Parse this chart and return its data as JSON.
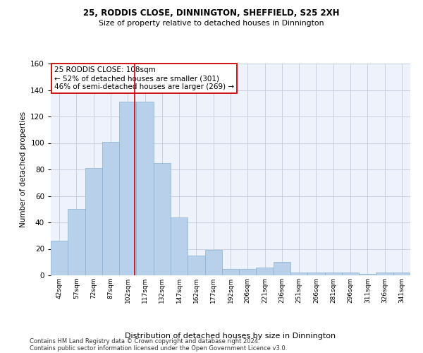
{
  "title1": "25, RODDIS CLOSE, DINNINGTON, SHEFFIELD, S25 2XH",
  "title2": "Size of property relative to detached houses in Dinnington",
  "xlabel": "Distribution of detached houses by size in Dinnington",
  "ylabel": "Number of detached properties",
  "categories": [
    "42sqm",
    "57sqm",
    "72sqm",
    "87sqm",
    "102sqm",
    "117sqm",
    "132sqm",
    "147sqm",
    "162sqm",
    "177sqm",
    "192sqm",
    "206sqm",
    "221sqm",
    "236sqm",
    "251sqm",
    "266sqm",
    "281sqm",
    "296sqm",
    "311sqm",
    "326sqm",
    "341sqm"
  ],
  "values": [
    26,
    50,
    81,
    101,
    131,
    131,
    85,
    44,
    15,
    19,
    5,
    5,
    6,
    10,
    2,
    2,
    2,
    2,
    1,
    2,
    2
  ],
  "bar_color": "#b8d0ea",
  "bar_edgecolor": "#8ab0d0",
  "bar_linewidth": 0.5,
  "grid_color": "#c8d0e0",
  "background_color": "#eef2fa",
  "red_line_x": 4.4,
  "red_line_color": "#cc0000",
  "annotation_box": {
    "text_line1": "25 RODDIS CLOSE: 108sqm",
    "text_line2": "← 52% of detached houses are smaller (301)",
    "text_line3": "46% of semi-detached houses are larger (269) →",
    "box_color": "white",
    "box_edgecolor": "#cc0000",
    "fontsize": 7.5
  },
  "footer1": "Contains HM Land Registry data © Crown copyright and database right 2024.",
  "footer2": "Contains public sector information licensed under the Open Government Licence v3.0.",
  "ylim": [
    0,
    160
  ],
  "yticks": [
    0,
    20,
    40,
    60,
    80,
    100,
    120,
    140,
    160
  ]
}
